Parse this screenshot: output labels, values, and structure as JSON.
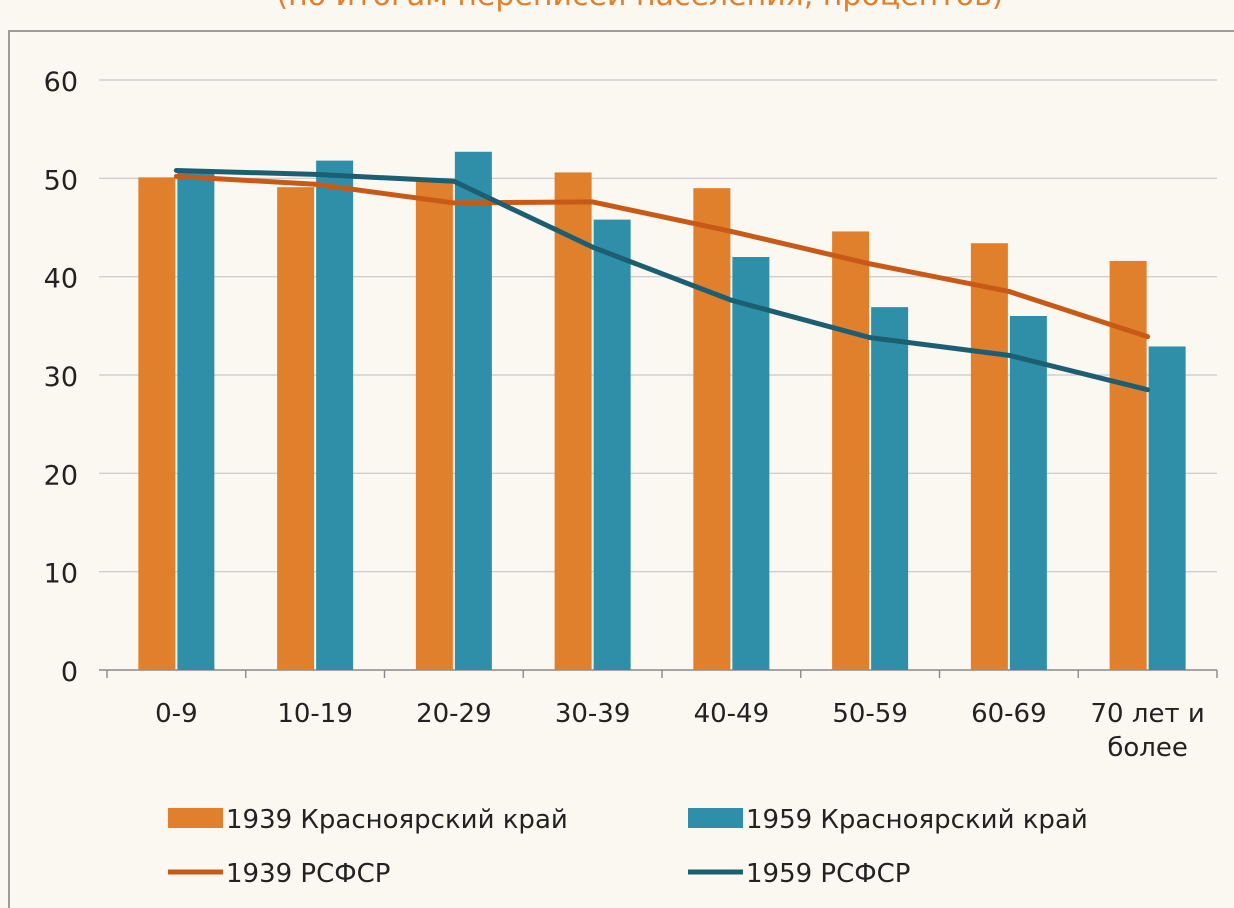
{
  "chart_data": {
    "type": "bar",
    "title": "(по итогам переписей населения, процентов)",
    "categories": [
      "0-9",
      "10-19",
      "20-29",
      "30-39",
      "40-49",
      "50-59",
      "60-69",
      "70 лет и более"
    ],
    "yticks": [
      0,
      10,
      20,
      30,
      40,
      50,
      60
    ],
    "ylim": [
      0,
      60
    ],
    "series": [
      {
        "name": "1939 Красноярский край",
        "kind": "bar",
        "color": "#e07f2c",
        "values": [
          50.1,
          49.1,
          49.8,
          50.6,
          49.0,
          44.6,
          43.4,
          41.6
        ]
      },
      {
        "name": "1959 Красноярский край",
        "kind": "bar",
        "color": "#2f8fa8",
        "values": [
          50.6,
          51.8,
          52.7,
          45.8,
          42.0,
          36.9,
          36.0,
          32.9
        ]
      },
      {
        "name": "1939 РСФСР",
        "kind": "line",
        "color": "#c85a17",
        "values": [
          50.2,
          49.4,
          47.5,
          47.6,
          44.6,
          41.3,
          38.5,
          33.9
        ]
      },
      {
        "name": "1959 РСФСР",
        "kind": "line",
        "color": "#1c5f73",
        "values": [
          50.8,
          50.4,
          49.7,
          43.0,
          37.6,
          33.8,
          32.0,
          28.5
        ]
      }
    ],
    "grid": true,
    "legend_position": "bottom"
  }
}
